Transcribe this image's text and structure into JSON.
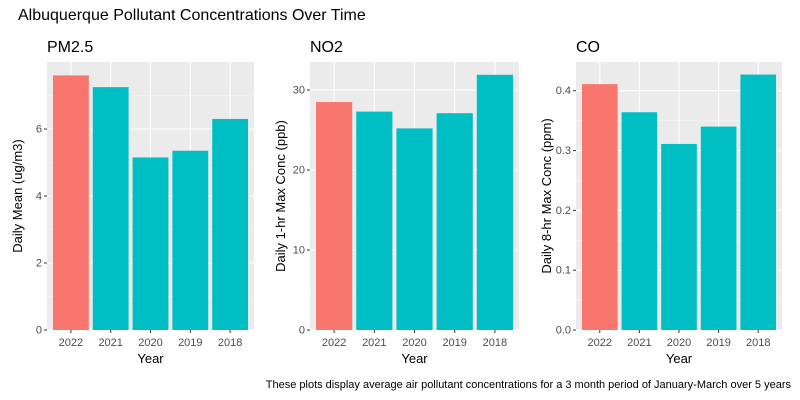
{
  "title": "Albuquerque Pollutant Concentrations Over Time",
  "caption": "These plots display average air pollutant concentrations for a 3 month period of January-March over 5 years",
  "colors": {
    "highlight": "#F8766D",
    "other": "#00BFC4",
    "panel_bg": "#EBEBEB",
    "grid": "#FFFFFF"
  },
  "chart_data": [
    {
      "type": "bar",
      "title": "PM2.5",
      "categories": [
        "2022",
        "2021",
        "2020",
        "2019",
        "2018"
      ],
      "values": [
        7.6,
        7.25,
        5.15,
        5.35,
        6.3
      ],
      "highlight": "2022",
      "xlabel": "Year",
      "ylabel": "Daily Mean (ug/m3)",
      "ylim": [
        0,
        8
      ],
      "yticks": [
        0,
        2,
        4,
        6
      ],
      "ytick_labels": [
        "0",
        "2",
        "4",
        "6"
      ],
      "grid": true,
      "legend": "none"
    },
    {
      "type": "bar",
      "title": "NO2",
      "categories": [
        "2022",
        "2021",
        "2020",
        "2019",
        "2018"
      ],
      "values": [
        28.5,
        27.3,
        25.2,
        27.1,
        31.9
      ],
      "highlight": "2022",
      "xlabel": "Year",
      "ylabel": "Daily 1-hr Max Conc (ppb)",
      "ylim": [
        0,
        33.5
      ],
      "yticks": [
        0,
        10,
        20,
        30
      ],
      "ytick_labels": [
        "0",
        "10",
        "20",
        "30"
      ],
      "grid": true,
      "legend": "none"
    },
    {
      "type": "bar",
      "title": "CO",
      "categories": [
        "2022",
        "2021",
        "2020",
        "2019",
        "2018"
      ],
      "values": [
        0.411,
        0.364,
        0.311,
        0.34,
        0.427
      ],
      "highlight": "2022",
      "xlabel": "Year",
      "ylabel": "Daily 8-hr Max Conc (ppm)",
      "ylim": [
        0,
        0.448
      ],
      "yticks": [
        0,
        0.1,
        0.2,
        0.3,
        0.4
      ],
      "ytick_labels": [
        "0.0",
        "0.1",
        "0.2",
        "0.3",
        "0.4"
      ],
      "grid": true,
      "legend": "none"
    }
  ]
}
